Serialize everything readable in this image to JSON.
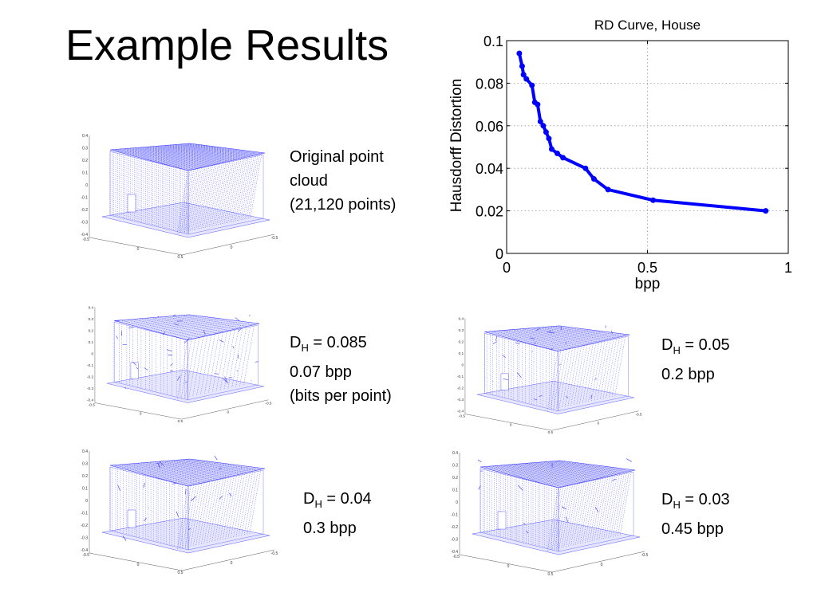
{
  "slide": {
    "title": "Example Results"
  },
  "captions": {
    "original": {
      "line1": "Original point",
      "line2": "cloud",
      "line3": "(21,120 points)"
    },
    "r1": {
      "d": "D",
      "sub": "H",
      "value": " = 0.085",
      "line2": "0.07 bpp",
      "line3": "(bits per point)"
    },
    "r2": {
      "d": "D",
      "sub": "H",
      "value": " = 0.05",
      "line2": "0.2 bpp"
    },
    "r3": {
      "d": "D",
      "sub": "H",
      "value": " = 0.04",
      "line2": "0.3 bpp"
    },
    "r4": {
      "d": "D",
      "sub": "H",
      "value": " = 0.03",
      "line2": "0.45 bpp"
    }
  },
  "pointcloud_axes": {
    "y_ticks": [
      "0.4",
      "0.3",
      "0.2",
      "0.1",
      "0",
      "-0.1",
      "-0.2",
      "-0.3",
      "-0.4"
    ],
    "x_left": "-0.5",
    "x_mid": "0",
    "x_near": "0.5",
    "z_mid": "0",
    "z_right": "-0.5",
    "color": "#3333ff"
  },
  "chart_data": {
    "type": "line",
    "title": "RD Curve, House",
    "xlabel": "bpp",
    "ylabel": "Hausdorff Distortion",
    "xlim": [
      0,
      1
    ],
    "ylim": [
      0,
      0.1
    ],
    "xticks": [
      0,
      0.5,
      1
    ],
    "xtick_labels": [
      "0",
      "0.5",
      "1"
    ],
    "yticks": [
      0,
      0.02,
      0.04,
      0.06,
      0.08,
      0.1
    ],
    "ytick_labels": [
      "0",
      "0.02",
      "0.04",
      "0.06",
      "0.08",
      "0.1"
    ],
    "grid": true,
    "line_color": "#0000ff",
    "series": [
      {
        "x": [
          0.045,
          0.055,
          0.06,
          0.07,
          0.09,
          0.1,
          0.11,
          0.12,
          0.13,
          0.14,
          0.15,
          0.16,
          0.18,
          0.2,
          0.28,
          0.31,
          0.36,
          0.52,
          0.92
        ],
        "y": [
          0.094,
          0.088,
          0.084,
          0.082,
          0.079,
          0.071,
          0.07,
          0.062,
          0.06,
          0.057,
          0.054,
          0.049,
          0.047,
          0.045,
          0.04,
          0.035,
          0.03,
          0.025,
          0.02
        ]
      }
    ]
  }
}
